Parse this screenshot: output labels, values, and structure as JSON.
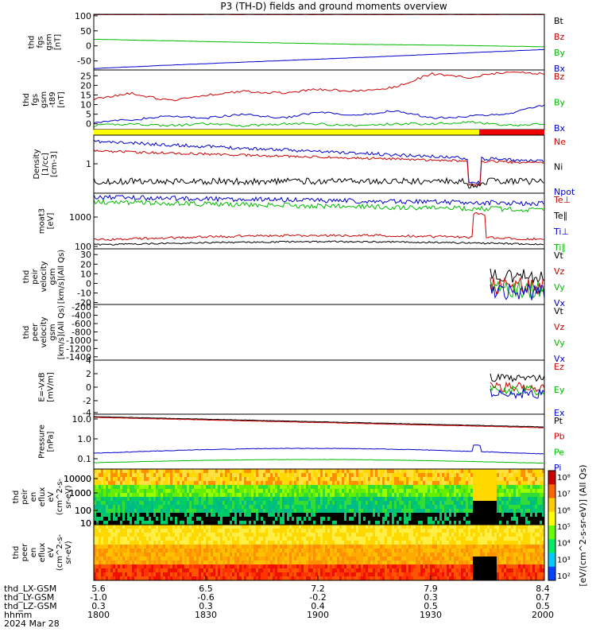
{
  "title": "P3 (TH-D) fields and ground moments overview",
  "chart_data": [
    {
      "type": "line",
      "ylabel": [
        "thd",
        "fgs",
        "gsm",
        "[nT]"
      ],
      "yticks": [
        "100",
        "50",
        "0",
        "-50"
      ],
      "ylim": [
        -80,
        105
      ],
      "series": [
        {
          "name": "Bt",
          "color": "#000000",
          "values": [
            105,
            105,
            105,
            105,
            105,
            105
          ]
        },
        {
          "name": "Bz",
          "color": "#cc0000",
          "values": [
            104,
            104,
            104,
            104,
            104,
            104
          ]
        },
        {
          "name": "By",
          "color": "#00bb00",
          "values": [
            22,
            16,
            10,
            5,
            2,
            -3
          ]
        },
        {
          "name": "Bx",
          "color": "#0000cc",
          "values": [
            -75,
            -62,
            -50,
            -38,
            -25,
            -12
          ]
        }
      ]
    },
    {
      "type": "line",
      "ylabel": [
        "thd",
        "fgs",
        "gsm",
        "-t89",
        "[nT]"
      ],
      "yticks": [
        "25",
        "20",
        "15",
        "10",
        "5",
        "0"
      ],
      "ylim": [
        -3,
        28
      ],
      "series": [
        {
          "name": "Bz",
          "color": "#cc0000",
          "values": [
            13,
            16,
            12,
            15,
            17,
            16,
            18,
            17,
            19,
            26,
            24,
            27,
            26
          ]
        },
        {
          "name": "By",
          "color": "#00bb00",
          "values": [
            -1,
            0,
            -1,
            0,
            -1,
            0,
            0,
            -1,
            0,
            0,
            1,
            -1,
            0
          ]
        },
        {
          "name": "Bx",
          "color": "#0000cc",
          "values": [
            1,
            2,
            4,
            3,
            5,
            3,
            6,
            4,
            7,
            3,
            4,
            5,
            10
          ]
        }
      ]
    },
    {
      "type": "line",
      "ylabel": [
        "Density",
        "[1/cc]",
        "[cm-3]"
      ],
      "yticks": [
        "1"
      ],
      "log_scale": true,
      "series": [
        {
          "name": "Ne",
          "color": "#cc0000"
        },
        {
          "name": "Ni",
          "color": "#000000"
        },
        {
          "name": "Npot",
          "color": "#0000cc"
        }
      ]
    },
    {
      "type": "line",
      "ylabel": [
        "moat3",
        "[eV]"
      ],
      "yticks": [
        "1000",
        "100"
      ],
      "log_scale": true,
      "series": [
        {
          "name": "Te⊥",
          "color": "#cc0000"
        },
        {
          "name": "Te∥",
          "color": "#000000"
        },
        {
          "name": "Ti⊥",
          "color": "#0000cc"
        },
        {
          "name": "Ti∥",
          "color": "#00bb00"
        }
      ]
    },
    {
      "type": "line",
      "ylabel": [
        "thd",
        "peir",
        "velocity",
        "gsm",
        "[km/s](All Qs)"
      ],
      "yticks": [
        "30",
        "20",
        "10",
        "0",
        "-10",
        "-20"
      ],
      "ylim": [
        -22,
        36
      ],
      "series": [
        {
          "name": "Vt",
          "color": "#000000"
        },
        {
          "name": "Vz",
          "color": "#cc0000"
        },
        {
          "name": "Vy",
          "color": "#00bb00"
        },
        {
          "name": "Vx",
          "color": "#0000cc"
        }
      ]
    },
    {
      "type": "line",
      "ylabel": [
        "thd",
        "peer",
        "velocity",
        "gsm",
        "[km/s](All Qs)"
      ],
      "yticks": [
        "-200",
        "-400",
        "-600",
        "-800",
        "-1000",
        "-1200",
        "-1400"
      ],
      "ylim": [
        -1480,
        -140
      ],
      "series": [
        {
          "name": "Vt",
          "color": "#000000"
        },
        {
          "name": "Vz",
          "color": "#cc0000"
        },
        {
          "name": "Vy",
          "color": "#00bb00"
        },
        {
          "name": "Vx",
          "color": "#0000cc"
        }
      ]
    },
    {
      "type": "line",
      "ylabel": [
        "E=-VxB",
        "[mV/m]"
      ],
      "yticks": [
        "4",
        "2",
        "0",
        "-2",
        "-4"
      ],
      "ylim": [
        -4,
        4
      ],
      "series": [
        {
          "name": "Ez",
          "color": "#cc0000"
        },
        {
          "name": "Ey",
          "color": "#00bb00"
        },
        {
          "name": "Ex",
          "color": "#0000cc"
        }
      ]
    },
    {
      "type": "line",
      "ylabel": [
        "Pressure",
        "[nPa]"
      ],
      "yticks": [
        "10.0",
        "1.0",
        "0.1"
      ],
      "log_scale": true,
      "series": [
        {
          "name": "Pt",
          "color": "#000000"
        },
        {
          "name": "Pb",
          "color": "#cc0000"
        },
        {
          "name": "Pe",
          "color": "#00bb00"
        },
        {
          "name": "Pi",
          "color": "#0000cc"
        }
      ]
    },
    {
      "type": "heatmap",
      "ylabel": [
        "thd",
        "peir",
        "en",
        "eflux",
        "eV",
        "(cm^2-s-",
        "sr-eV)"
      ],
      "yticks": [
        "10000",
        "1000",
        "100",
        "10"
      ],
      "log_scale": true
    },
    {
      "type": "heatmap",
      "ylabel": [
        "thd",
        "peer",
        "en",
        "eflux",
        "eV",
        "(cm^2-s-",
        "sr-eV)"
      ],
      "yticks": [
        "10000",
        "1000",
        "100",
        "10"
      ],
      "log_scale": true
    }
  ],
  "colorbar": {
    "tick_labels": [
      "10⁸",
      "10⁷",
      "10⁶",
      "10⁵",
      "10⁴",
      "10³",
      "10²"
    ],
    "label": "[eV/(cm^2-s-sr-eV)] (All Qs)"
  },
  "x_axis": {
    "rows": [
      {
        "label": "thd_LX-GSM",
        "values": [
          "5.6",
          "6.5",
          "7.2",
          "7.9",
          "8.4"
        ]
      },
      {
        "label": "thd_LY-GSM",
        "values": [
          "-1.0",
          "-0.6",
          "-0.2",
          "0.3",
          "0.7"
        ]
      },
      {
        "label": "thd_LZ-GSM",
        "values": [
          "0.3",
          "0.3",
          "0.4",
          "0.5",
          "0.5"
        ]
      },
      {
        "label": "hhmm",
        "values": [
          "1800",
          "1830",
          "1900",
          "1930",
          "2000"
        ]
      }
    ],
    "date": "2024 Mar 28"
  }
}
